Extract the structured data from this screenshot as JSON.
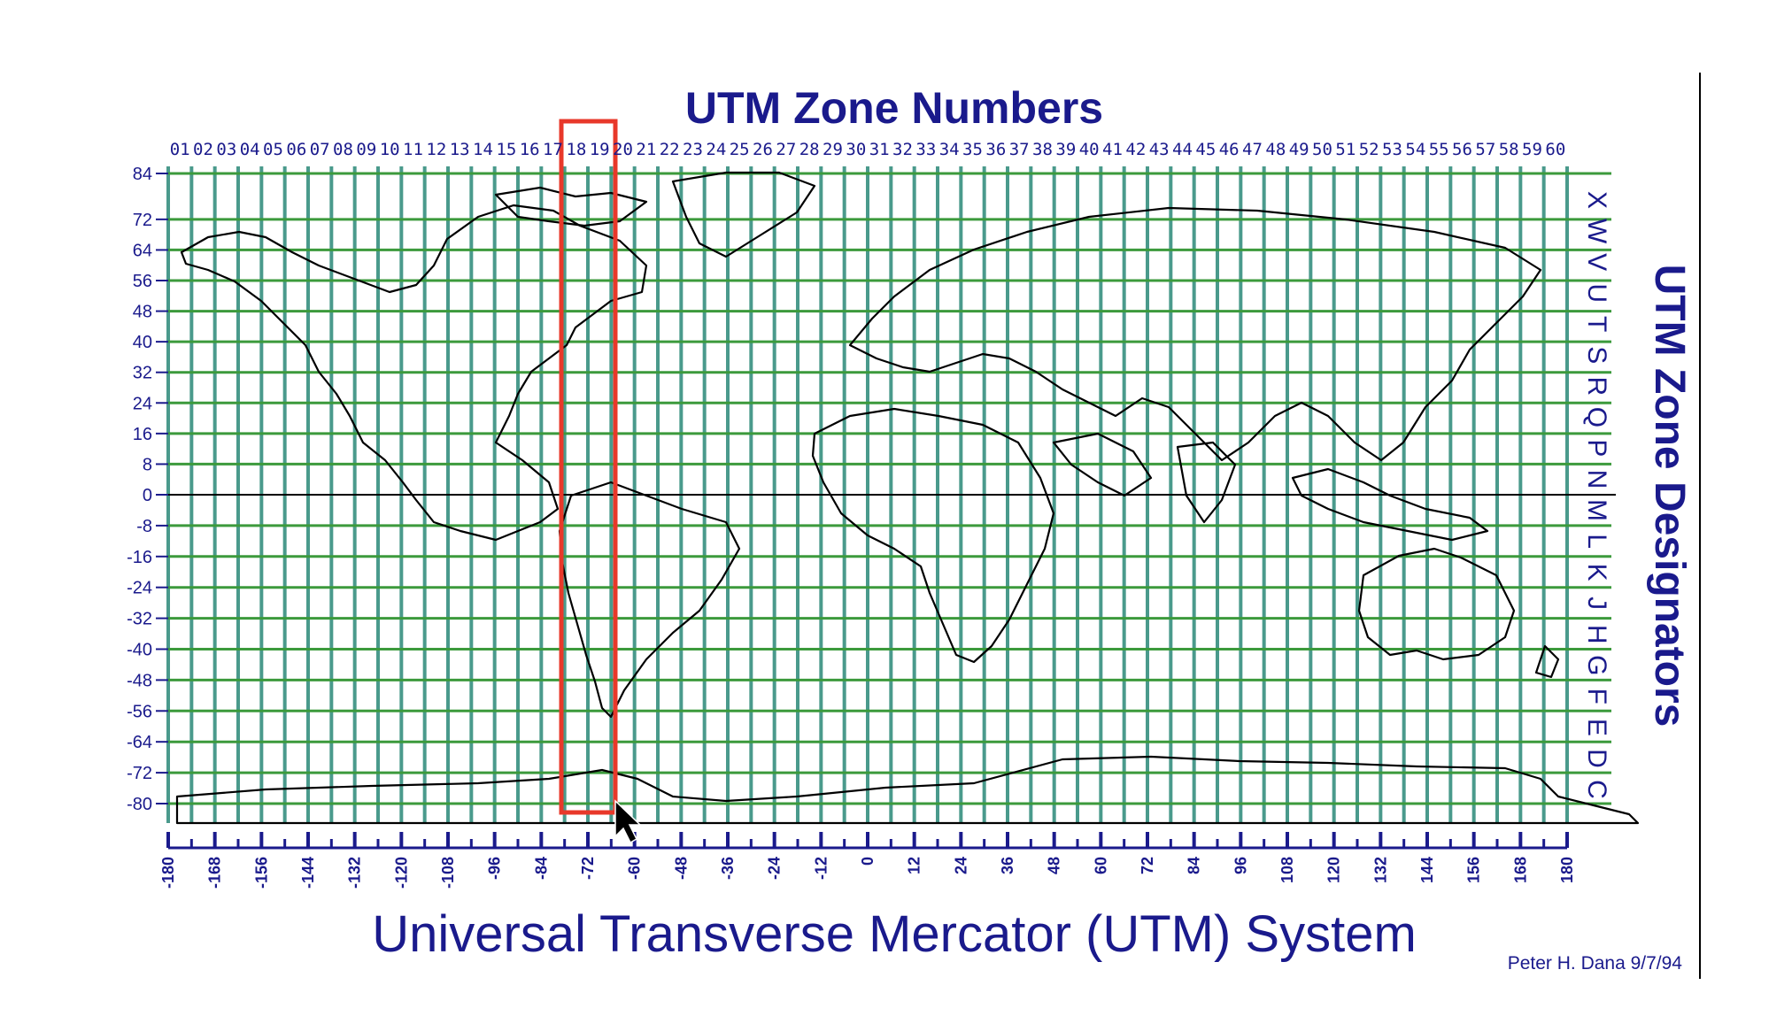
{
  "map": {
    "title": "UTM Zone Numbers",
    "side_title": "UTM Zone Designators",
    "bottom_title": "Universal Transverse Mercator (UTM) System",
    "credit": "Peter H. Dana 9/7/94",
    "zone_numbers": [
      "01",
      "02",
      "03",
      "04",
      "05",
      "06",
      "07",
      "08",
      "09",
      "10",
      "11",
      "12",
      "13",
      "14",
      "15",
      "16",
      "17",
      "18",
      "19",
      "20",
      "21",
      "22",
      "23",
      "24",
      "25",
      "26",
      "27",
      "28",
      "29",
      "30",
      "31",
      "32",
      "33",
      "34",
      "35",
      "36",
      "37",
      "38",
      "39",
      "40",
      "41",
      "42",
      "43",
      "44",
      "45",
      "46",
      "47",
      "48",
      "49",
      "50",
      "51",
      "52",
      "53",
      "54",
      "55",
      "56",
      "57",
      "58",
      "59",
      "60"
    ],
    "latitude_labels": [
      "84",
      "72",
      "64",
      "56",
      "48",
      "40",
      "32",
      "24",
      "16",
      "8",
      "0",
      "-8",
      "-16",
      "-24",
      "-32",
      "-40",
      "-48",
      "-56",
      "-64",
      "-72",
      "-80"
    ],
    "latitude_values": [
      84,
      72,
      64,
      56,
      48,
      40,
      32,
      24,
      16,
      8,
      0,
      -8,
      -16,
      -24,
      -32,
      -40,
      -48,
      -56,
      -64,
      -72,
      -80
    ],
    "longitude_labels": [
      "-180",
      "-168",
      "-156",
      "-144",
      "-132",
      "-120",
      "-108",
      "-96",
      "-84",
      "-72",
      "-60",
      "-48",
      "-36",
      "-24",
      "-12",
      "0",
      "12",
      "24",
      "36",
      "48",
      "60",
      "72",
      "84",
      "96",
      "108",
      "120",
      "132",
      "144",
      "156",
      "168",
      "180"
    ],
    "band_designators": [
      "X",
      "W",
      "V",
      "U",
      "T",
      "S",
      "R",
      "Q",
      "P",
      "N",
      "M",
      "L",
      "K",
      "J",
      "H",
      "G",
      "F",
      "E",
      "D",
      "C"
    ],
    "highlighted_zones": [
      "18",
      "19"
    ],
    "colors": {
      "text": "#1a1a8c",
      "meridian_grid": "#4a9a8c",
      "parallel_grid": "#3c9a3c",
      "equator": "#000000",
      "highlight": "#e8382a",
      "coastline": "#000000"
    }
  }
}
